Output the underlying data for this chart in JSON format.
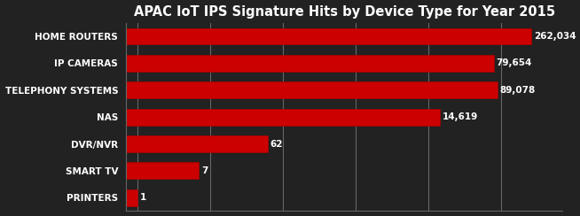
{
  "title": "APAC IoT IPS Signature Hits by Device Type for Year 2015",
  "categories": [
    "HOME ROUTERS",
    "IP CAMERAS",
    "TELEPHONY SYSTEMS",
    "NAS",
    "DVR/NVR",
    "SMART TV",
    "PRINTERS"
  ],
  "values": [
    262034,
    79654,
    89078,
    14619,
    62,
    7,
    1
  ],
  "bar_color": "#cc0000",
  "background_color": "#222222",
  "text_color": "#ffffff",
  "title_color": "#ffffff",
  "value_labels": [
    "262,034",
    "79,654",
    "89,078",
    "14,619",
    "62",
    "7",
    "1"
  ],
  "xlim_log": [
    0.5,
    1000000
  ],
  "grid_color": "#666666",
  "title_fontsize": 10.5,
  "tick_fontsize": 7.5,
  "value_fontsize": 7.5
}
